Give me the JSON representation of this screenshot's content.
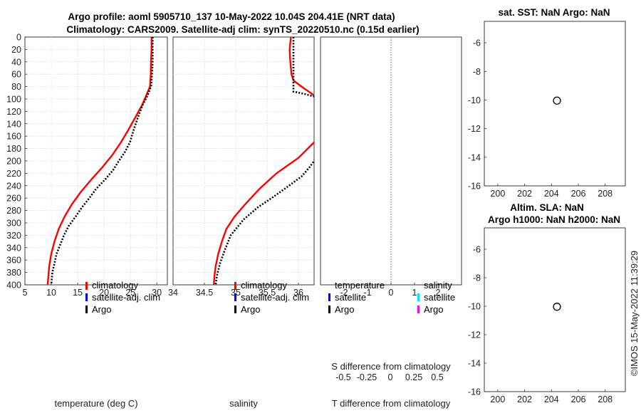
{
  "titles": {
    "main_line1": "Argo profile: aoml 5905710_137 10-May-2022 10.04S 204.41E (NRT data)",
    "main_line2": "Climatology: CARS2009. Satellite-adj clim: synTS_20220510.nc (0.15d earlier)",
    "sst": "sat. SST: NaN Argo: NaN",
    "sla_line1": "Altim. SLA: NaN",
    "sla_line2": "Argo h1000: NaN h2000: NaN"
  },
  "watermark": "©IMOS 15-May-2022 11:39:29",
  "colors": {
    "climatology": "#ff0000",
    "satellite": "#0000ff",
    "argo": "#000000",
    "satellite_s": "#00e5ff",
    "argo_s": "#ff00ff"
  },
  "chart_data": [
    {
      "id": "temperature",
      "type": "line",
      "xlabel": "temperature (deg C)",
      "ylabel": "",
      "xlim": [
        5,
        32
      ],
      "ylim": [
        400,
        0
      ],
      "xticks": [
        5,
        10,
        15,
        20,
        25,
        30
      ],
      "yticks": [
        0,
        20,
        40,
        60,
        80,
        100,
        120,
        140,
        160,
        180,
        200,
        220,
        240,
        260,
        280,
        300,
        320,
        340,
        360,
        380,
        400
      ],
      "grid": true,
      "legend": {
        "position": "right",
        "entries": [
          "climatology",
          "satellite-adj. clim",
          "Argo"
        ]
      },
      "series": [
        {
          "name": "climatology",
          "style": "solid",
          "color": "#ff0000",
          "x": [
            29.0,
            29.0,
            28.9,
            28.85,
            28.7,
            28.2,
            27.2,
            25.9,
            24.6,
            23.2,
            21.6,
            19.7,
            17.6,
            15.6,
            13.9,
            12.5,
            11.4,
            10.6,
            10.0,
            9.6,
            9.3
          ],
          "y": [
            0,
            20,
            40,
            60,
            80,
            90,
            110,
            130,
            150,
            170,
            190,
            210,
            230,
            250,
            270,
            290,
            310,
            330,
            350,
            370,
            400
          ]
        },
        {
          "name": "Argo",
          "style": "dotted",
          "color": "#000000",
          "x": [
            29.2,
            29.2,
            29.2,
            29.1,
            28.9,
            28.2,
            27.3,
            26.4,
            25.6,
            24.9,
            24.0,
            22.8,
            21.7,
            20.2,
            18.5,
            17.2,
            15.8,
            14.6,
            13.3,
            12.4,
            11.7,
            11.0,
            10.6,
            10.2,
            10.0
          ],
          "y": [
            0,
            20,
            40,
            60,
            80,
            95,
            110,
            130,
            150,
            170,
            185,
            200,
            215,
            230,
            245,
            260,
            275,
            290,
            305,
            320,
            335,
            350,
            365,
            380,
            400
          ]
        }
      ]
    },
    {
      "id": "salinity",
      "type": "line",
      "xlabel": "salinity",
      "ylabel": "",
      "xlim": [
        34.0,
        36.25
      ],
      "ylim": [
        400,
        0
      ],
      "xticks": [
        34,
        34.5,
        35,
        35.5,
        36
      ],
      "yticks": [
        0,
        20,
        40,
        60,
        80,
        100,
        120,
        140,
        160,
        180,
        200,
        220,
        240,
        260,
        280,
        300,
        320,
        340,
        360,
        380,
        400
      ],
      "grid": true,
      "legend": {
        "position": "right",
        "entries": [
          "climatology",
          "satellite-adj. clim",
          "Argo"
        ]
      },
      "series": [
        {
          "name": "climatology",
          "style": "solid",
          "color": "#ff0000",
          "x": [
            35.88,
            35.86,
            35.87,
            35.89,
            35.92,
            36.05,
            36.22,
            36.3,
            36.3,
            36.25,
            36.0,
            35.65,
            35.38,
            35.15,
            34.98,
            34.85,
            34.78,
            34.72,
            34.68,
            34.66,
            34.65
          ],
          "y": [
            0,
            20,
            40,
            60,
            70,
            80,
            92,
            100,
            160,
            170,
            195,
            220,
            245,
            270,
            290,
            310,
            330,
            350,
            370,
            385,
            400
          ]
        },
        {
          "name": "Argo",
          "style": "dotted",
          "color": "#000000",
          "x": [
            35.92,
            35.92,
            35.92,
            35.92,
            35.92,
            35.92,
            36.1,
            36.25,
            36.3,
            36.3,
            36.25,
            36.18,
            36.05,
            35.85,
            35.6,
            35.35,
            35.12,
            34.92,
            34.82,
            34.75,
            34.7,
            34.68
          ],
          "y": [
            0,
            20,
            40,
            60,
            80,
            88,
            92,
            96,
            100,
            190,
            200,
            210,
            225,
            240,
            258,
            275,
            295,
            320,
            345,
            365,
            385,
            400
          ]
        }
      ]
    },
    {
      "id": "difference",
      "type": "line",
      "xlabel": "T difference from climatology",
      "top_label": "S difference from climatology",
      "xlim": [
        -3,
        3
      ],
      "ylim": [
        400,
        0
      ],
      "xticks": [
        -2,
        -1,
        0,
        1,
        2
      ],
      "xtick_labels": [
        "-2",
        "-1",
        "0",
        "1",
        "2"
      ],
      "s_ticks": [
        -0.5,
        -0.25,
        0,
        0.25,
        0.5
      ],
      "s_tick_labels": [
        "-0.5",
        "-0.25",
        "0",
        "0.25",
        "0.5"
      ],
      "legend": {
        "temperature_title": "temperature",
        "salinity_title": "salinity",
        "temperature_entries": [
          "satellite",
          "Argo"
        ],
        "salinity_entries": [
          "satellite",
          "Argo"
        ]
      },
      "series": []
    },
    {
      "id": "sst_map",
      "type": "scatter",
      "title": "sat. SST: NaN Argo: NaN",
      "xlim": [
        199,
        209.5
      ],
      "ylim": [
        -16,
        -4.5
      ],
      "xticks": [
        200,
        202,
        204,
        206,
        208
      ],
      "yticks": [
        -6,
        -8,
        -10,
        -12,
        -14,
        -16
      ],
      "points": [
        {
          "x": 204.41,
          "y": -10.04
        }
      ]
    },
    {
      "id": "sla_map",
      "type": "scatter",
      "title": "Altim. SLA: NaN / Argo h1000: NaN h2000: NaN",
      "xlim": [
        199,
        209.5
      ],
      "ylim": [
        -16,
        -4.5
      ],
      "xticks": [
        200,
        202,
        204,
        206,
        208
      ],
      "yticks": [
        -6,
        -8,
        -10,
        -12,
        -14,
        -16
      ],
      "points": [
        {
          "x": 204.41,
          "y": -10.04
        }
      ]
    }
  ]
}
